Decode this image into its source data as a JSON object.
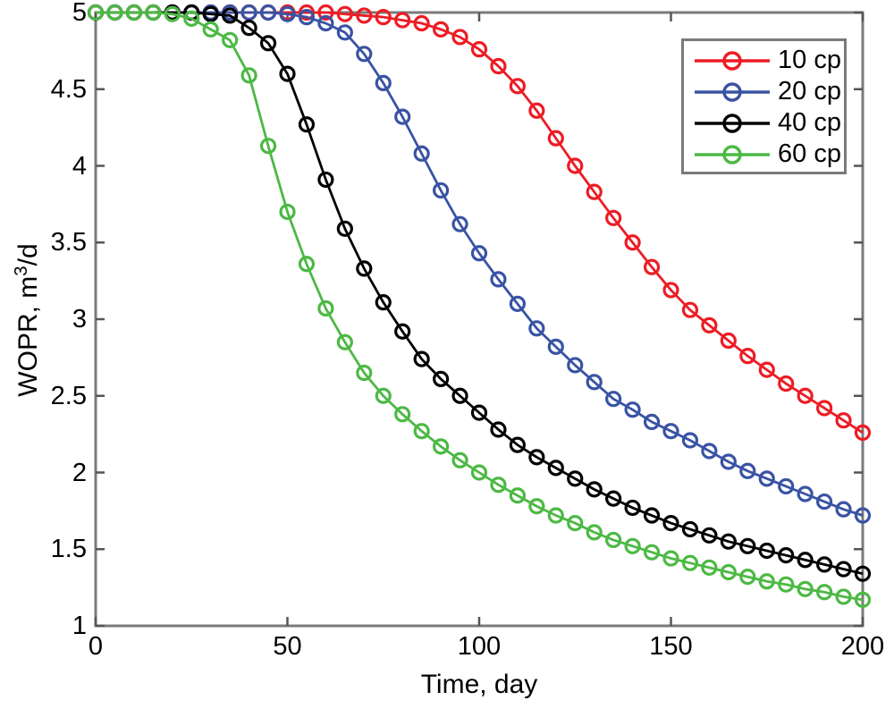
{
  "figure": {
    "background": "#ffffff",
    "frame_color": "#7a7a7a",
    "tick_color": "#555555",
    "text_color": "#000000"
  },
  "chart_data": {
    "type": "line",
    "title": "",
    "xlabel": "Time, day",
    "ylabel": "WOPR, m³/d",
    "ylabel_parts": {
      "base": "WOPR, m",
      "sup": "3",
      "tail": "/d"
    },
    "xlim": [
      0,
      200
    ],
    "ylim": [
      1,
      5
    ],
    "grid": false,
    "legend_position": "top-right",
    "marker": "open-circle",
    "x_ticks": [
      {
        "value": 0,
        "label": "0"
      },
      {
        "value": 50,
        "label": "50"
      },
      {
        "value": 100,
        "label": "100"
      },
      {
        "value": 150,
        "label": "150"
      },
      {
        "value": 200,
        "label": "200"
      }
    ],
    "y_ticks": [
      {
        "value": 1,
        "label": "1"
      },
      {
        "value": 1.5,
        "label": "1.5"
      },
      {
        "value": 2,
        "label": "2"
      },
      {
        "value": 2.5,
        "label": "2.5"
      },
      {
        "value": 3,
        "label": "3"
      },
      {
        "value": 3.5,
        "label": "3.5"
      },
      {
        "value": 4,
        "label": "4"
      },
      {
        "value": 4.5,
        "label": "4.5"
      },
      {
        "value": 5,
        "label": "5"
      }
    ],
    "x": [
      0,
      5,
      10,
      15,
      20,
      25,
      30,
      35,
      40,
      45,
      50,
      55,
      60,
      65,
      70,
      75,
      80,
      85,
      90,
      95,
      100,
      105,
      110,
      115,
      120,
      125,
      130,
      135,
      140,
      145,
      150,
      155,
      160,
      165,
      170,
      175,
      180,
      185,
      190,
      195,
      200
    ],
    "series": [
      {
        "label": "10 cp",
        "color": "#ed1c24",
        "values": [
          5,
          5,
          5,
          5,
          5,
          5,
          5,
          5,
          5,
          5,
          5,
          5,
          5,
          4.99,
          4.98,
          4.97,
          4.95,
          4.93,
          4.89,
          4.84,
          4.76,
          4.65,
          4.52,
          4.36,
          4.18,
          4.0,
          3.83,
          3.66,
          3.5,
          3.34,
          3.19,
          3.06,
          2.96,
          2.86,
          2.76,
          2.67,
          2.58,
          2.5,
          2.42,
          2.34,
          2.26
        ]
      },
      {
        "label": "20 cp",
        "color": "#3953a4",
        "values": [
          5,
          5,
          5,
          5,
          5,
          5,
          5,
          5,
          5,
          5,
          4.99,
          4.97,
          4.93,
          4.87,
          4.73,
          4.54,
          4.32,
          4.08,
          3.84,
          3.62,
          3.43,
          3.26,
          3.1,
          2.94,
          2.82,
          2.7,
          2.59,
          2.48,
          2.41,
          2.33,
          2.27,
          2.21,
          2.14,
          2.07,
          2.01,
          1.96,
          1.91,
          1.86,
          1.81,
          1.76,
          1.72
        ]
      },
      {
        "label": "40 cp",
        "color": "#000000",
        "values": [
          5,
          5,
          5,
          5,
          5,
          5,
          4.99,
          4.98,
          4.9,
          4.8,
          4.6,
          4.27,
          3.91,
          3.59,
          3.33,
          3.11,
          2.92,
          2.74,
          2.61,
          2.5,
          2.39,
          2.28,
          2.18,
          2.1,
          2.03,
          1.96,
          1.89,
          1.83,
          1.77,
          1.72,
          1.67,
          1.63,
          1.59,
          1.55,
          1.52,
          1.49,
          1.46,
          1.43,
          1.4,
          1.37,
          1.34
        ]
      },
      {
        "label": "60 cp",
        "color": "#4cb944",
        "values": [
          5,
          5,
          5,
          5,
          4.99,
          4.96,
          4.89,
          4.82,
          4.59,
          4.13,
          3.7,
          3.36,
          3.07,
          2.85,
          2.65,
          2.5,
          2.38,
          2.27,
          2.17,
          2.08,
          2.0,
          1.92,
          1.85,
          1.78,
          1.72,
          1.67,
          1.61,
          1.56,
          1.52,
          1.48,
          1.44,
          1.41,
          1.38,
          1.35,
          1.32,
          1.29,
          1.27,
          1.24,
          1.22,
          1.19,
          1.17
        ]
      }
    ]
  }
}
